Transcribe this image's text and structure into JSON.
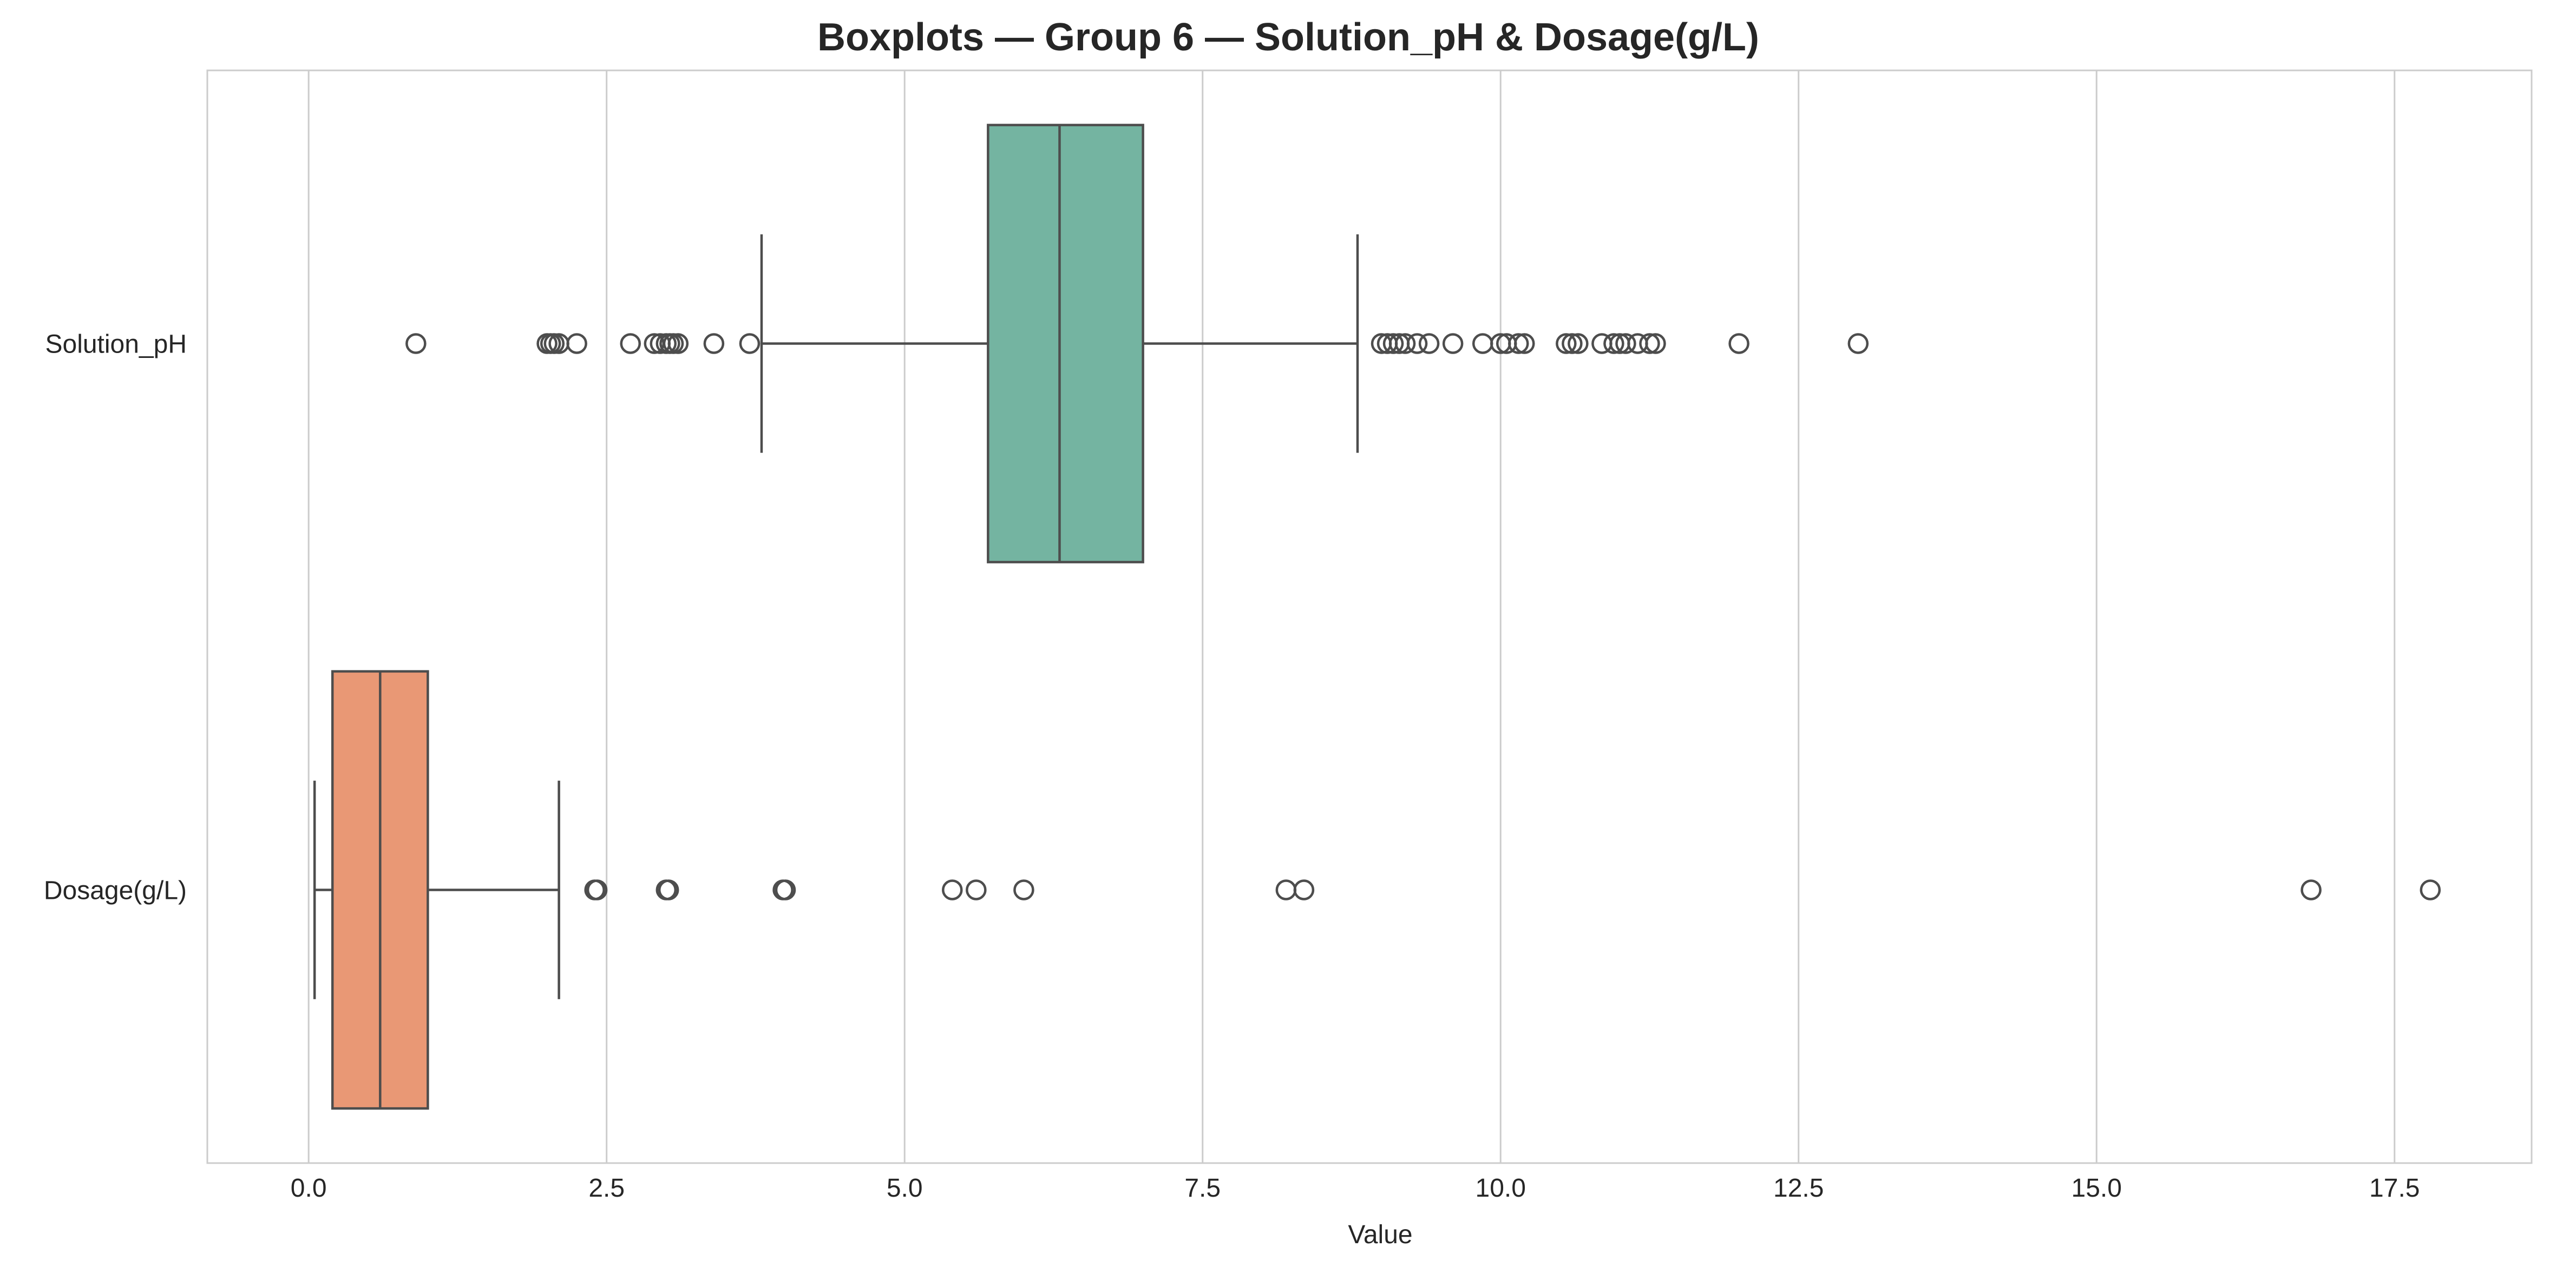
{
  "chart_data": {
    "type": "boxplot",
    "orientation": "horizontal",
    "title": "Boxplots — Group 6 — Solution_pH & Dosage(g/L)",
    "xlabel": "Value",
    "ylabel": "",
    "xlim": [
      -0.85,
      18.65
    ],
    "xticks": [
      0,
      2.5,
      5,
      7.5,
      10,
      12.5,
      15,
      17.5
    ],
    "xtick_labels": [
      "0.0",
      "2.5",
      "5.0",
      "7.5",
      "10.0",
      "12.5",
      "15.0",
      "17.5"
    ],
    "grid": {
      "x": true,
      "y": false
    },
    "series": [
      {
        "name": "Solution_pH",
        "color": "#74b4a1",
        "whisker_low": 3.8,
        "q1": 5.7,
        "median": 6.3,
        "q3": 7.0,
        "whisker_high": 8.8,
        "outliers": [
          0.9,
          2.0,
          2.03,
          2.06,
          2.1,
          2.25,
          2.7,
          2.9,
          2.95,
          3.0,
          3.03,
          3.06,
          3.1,
          3.4,
          3.7,
          9.0,
          9.05,
          9.1,
          9.15,
          9.2,
          9.3,
          9.4,
          9.6,
          9.85,
          10.0,
          10.05,
          10.15,
          10.2,
          10.55,
          10.6,
          10.65,
          10.85,
          10.95,
          11.0,
          11.05,
          11.15,
          11.25,
          11.3,
          12.0,
          13.0
        ]
      },
      {
        "name": "Dosage(g/L)",
        "color": "#e99875",
        "whisker_low": 0.05,
        "q1": 0.2,
        "median": 0.6,
        "q3": 1.0,
        "whisker_high": 2.1,
        "outliers": [
          2.4,
          2.42,
          3.0,
          3.02,
          3.98,
          4.0,
          5.4,
          5.6,
          6.0,
          8.2,
          8.35,
          16.8,
          17.8
        ]
      }
    ]
  }
}
